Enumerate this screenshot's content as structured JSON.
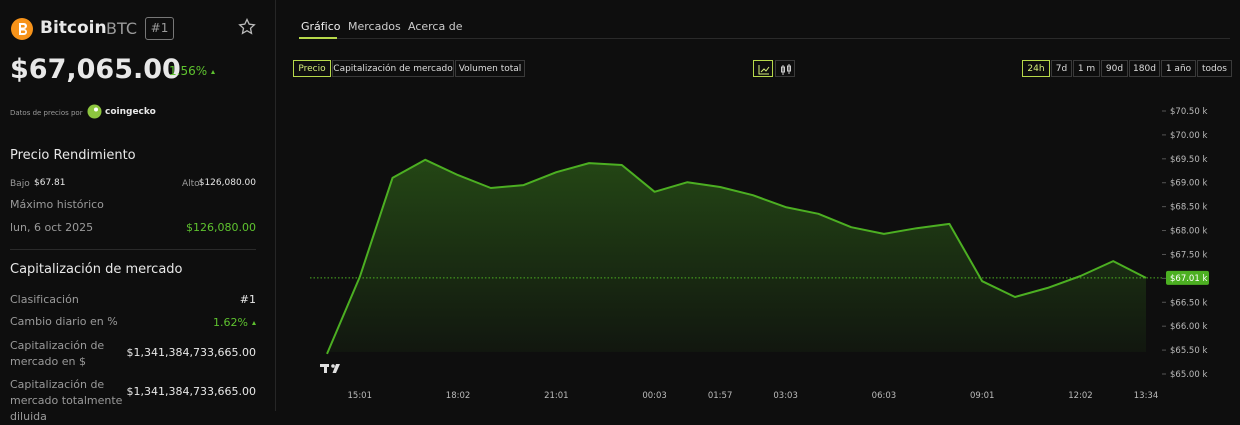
{
  "coin": {
    "name": "Bitcoin",
    "symbol": "BTC",
    "rank": "#1",
    "price": "$67,065.00",
    "change": "1.56%",
    "source_label": "Datos de precios por",
    "source": "coingecko"
  },
  "price_performance": {
    "title": "Precio Rendimiento",
    "low_label": "Bajo",
    "low": "$67.81",
    "high_label": "Alto",
    "high": "$126,080.00",
    "ath_label": "Máximo histórico",
    "ath_date": "lun, 6 oct 2025",
    "ath_value": "$126,080.00"
  },
  "market_cap": {
    "title": "Capitalización de mercado",
    "rows": [
      [
        "Clasificación",
        "#1"
      ],
      [
        "Cambio diario en %",
        "1.62%"
      ],
      [
        "Capitalización de mercado en $",
        "$1,341,384,733,665.00"
      ],
      [
        "Capitalización de mercado totalmente diluida",
        "$1,341,384,733,665.00"
      ]
    ]
  },
  "tabs": [
    "Gráfico",
    "Mercados",
    "Acerca de"
  ],
  "metrics": [
    "Precio",
    "Capitalización de mercado",
    "Volumen total"
  ],
  "ranges": [
    "24h",
    "7d",
    "1 m",
    "90d",
    "180d",
    "1 año",
    "todos"
  ],
  "chart_data": {
    "type": "area",
    "color": "#4caf22",
    "categories": [
      null,
      "15:01",
      null,
      null,
      "18:02",
      null,
      null,
      "21:01",
      null,
      null,
      "00:03",
      null,
      "01:57",
      null,
      "03:03",
      null,
      null,
      "06:03",
      null,
      null,
      "09:01",
      null,
      null,
      "12:02",
      null,
      "13:34"
    ],
    "values": [
      65420,
      67030,
      69100,
      69480,
      69160,
      68890,
      68950,
      69220,
      69410,
      69370,
      68810,
      69010,
      68910,
      68740,
      68490,
      68350,
      68070,
      67930,
      68050,
      68140,
      66940,
      66610,
      66800,
      67050,
      67360,
      67010
    ],
    "last_value": {
      "value": 67010,
      "label": "$67.01 k"
    },
    "ylim": [
      65000,
      70500
    ],
    "yticks": [
      {
        "value": 65000,
        "label": "$65.00 k"
      },
      {
        "value": 65500,
        "label": "$65.50 k"
      },
      {
        "value": 66000,
        "label": "$66.00 k"
      },
      {
        "value": 66500,
        "label": "$66.50 k"
      },
      {
        "value": 67000,
        "label": "$67.00 k"
      },
      {
        "value": 67500,
        "label": "$67.50 k"
      },
      {
        "value": 68000,
        "label": "$68.00 k"
      },
      {
        "value": 68500,
        "label": "$68.50 k"
      },
      {
        "value": 69000,
        "label": "$69.00 k"
      },
      {
        "value": 69500,
        "label": "$69.50 k"
      },
      {
        "value": 70000,
        "label": "$70.00 k"
      },
      {
        "value": 70500,
        "label": "$70.50 k"
      }
    ]
  }
}
